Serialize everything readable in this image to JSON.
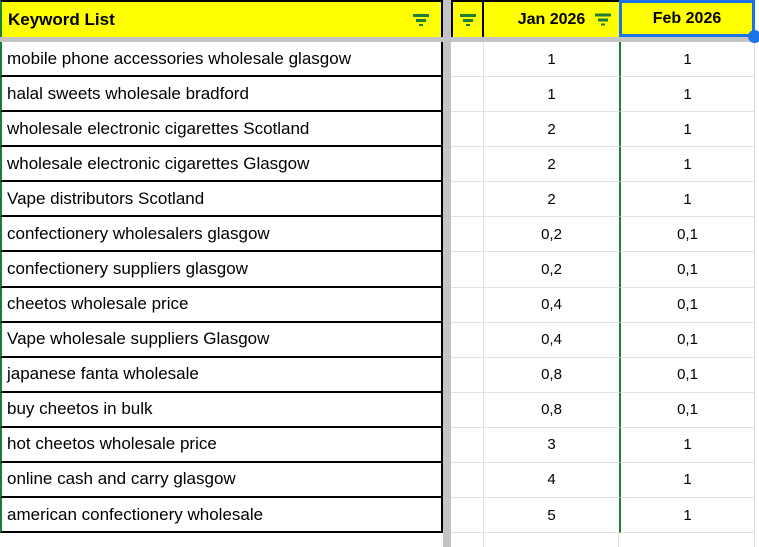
{
  "header": {
    "keyword_label": "Keyword List",
    "jan_label": "Jan 2026",
    "feb_label": "Feb 2026"
  },
  "rows": [
    {
      "keyword": "mobile phone accessories wholesale glasgow",
      "jan": "1",
      "feb": "1"
    },
    {
      "keyword": "halal sweets wholesale bradford",
      "jan": "1",
      "feb": "1"
    },
    {
      "keyword": "wholesale electronic cigarettes Scotland",
      "jan": "2",
      "feb": "1"
    },
    {
      "keyword": "wholesale electronic cigarettes Glasgow",
      "jan": "2",
      "feb": "1"
    },
    {
      "keyword": "Vape distributors Scotland",
      "jan": "2",
      "feb": "1"
    },
    {
      "keyword": "confectionery wholesalers glasgow",
      "jan": "0,2",
      "feb": "0,1"
    },
    {
      "keyword": "confectionery suppliers glasgow",
      "jan": "0,2",
      "feb": "0,1"
    },
    {
      "keyword": "cheetos wholesale price",
      "jan": "0,4",
      "feb": "0,1"
    },
    {
      "keyword": "Vape wholesale suppliers Glasgow",
      "jan": "0,4",
      "feb": "0,1"
    },
    {
      "keyword": "japanese fanta wholesale",
      "jan": "0,8",
      "feb": "0,1"
    },
    {
      "keyword": "buy cheetos in bulk",
      "jan": "0,8",
      "feb": "0,1"
    },
    {
      "keyword": "hot cheetos wholesale price",
      "jan": "3",
      "feb": "1"
    },
    {
      "keyword": "online cash and carry glasgow",
      "jan": "4",
      "feb": "1"
    },
    {
      "keyword": "american confectionery wholesale",
      "jan": "5",
      "feb": "1"
    }
  ],
  "icons": {
    "filter": "filter-icon",
    "selection_handle": "selection-handle"
  },
  "colors": {
    "header_bg": "#ffff00",
    "filter_icon_green": "#188038",
    "table_border_green": "#188038",
    "selection_blue": "#1a73e8",
    "freeze_bar_gray": "#c4c4c4",
    "gridline_gray": "#e2e2e2",
    "border_black": "#000000"
  }
}
